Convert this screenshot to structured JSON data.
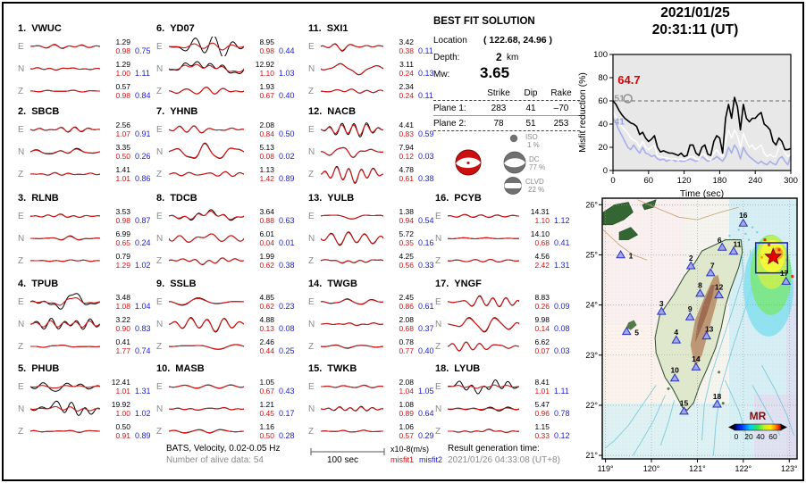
{
  "datetime": {
    "date": "2021/01/25",
    "time": "20:31:11  (UT)"
  },
  "solution": {
    "title": "BEST FIT SOLUTION",
    "location_label": "Location",
    "location_value": "( 122.68,  24.96 )",
    "depth_label": "Depth:",
    "depth_value": "2",
    "depth_unit": "km",
    "mw_label": "Mw:",
    "mw_value": "3.65",
    "col_strike": "Strike",
    "col_dip": "Dip",
    "col_rake": "Rake",
    "p1_label": "Plane 1:",
    "p1_strike": "283",
    "p1_dip": "41",
    "p1_rake": "–70",
    "p2_label": "Plane 2:",
    "p2_strike": "78",
    "p2_dip": "51",
    "p2_rake": "253",
    "decomposition": [
      {
        "label": "ISO",
        "pct": "1  %"
      },
      {
        "label": "DC",
        "pct": "77 %"
      },
      {
        "label": "CLVD",
        "pct": "22 %"
      }
    ]
  },
  "stations": [
    {
      "num": "1.",
      "name": "VWUC",
      "comps": [
        {
          "label": "E",
          "obs": "1.29",
          "syn": "0.98",
          "m2": "0.75",
          "a1": 0.16,
          "a2": 0.13
        },
        {
          "label": "N",
          "obs": "1.29",
          "syn": "1.00",
          "m2": "1.11",
          "a1": 0.13,
          "a2": 0.11
        },
        {
          "label": "Z",
          "obs": "0.57",
          "syn": "0.98",
          "m2": "0.84",
          "a1": 0.09,
          "a2": 0.08
        }
      ]
    },
    {
      "num": "2.",
      "name": "SBCB",
      "comps": [
        {
          "label": "E",
          "obs": "2.56",
          "syn": "1.07",
          "m2": "0.91",
          "a1": 0.22,
          "a2": 0.18
        },
        {
          "label": "N",
          "obs": "3.35",
          "syn": "0.50",
          "m2": "0.26",
          "a1": 0.28,
          "a2": 0.22
        },
        {
          "label": "Z",
          "obs": "1.41",
          "syn": "1.01",
          "m2": "0.86",
          "a1": 0.14,
          "a2": 0.12
        }
      ]
    },
    {
      "num": "3.",
      "name": "RLNB",
      "comps": [
        {
          "label": "E",
          "obs": "3.53",
          "syn": "0.98",
          "m2": "0.87",
          "a1": 0.13,
          "a2": 0.11
        },
        {
          "label": "N",
          "obs": "6.99",
          "syn": "0.65",
          "m2": "0.24",
          "a1": 0.16,
          "a2": 0.13
        },
        {
          "label": "Z",
          "obs": "0.79",
          "syn": "1.29",
          "m2": "1.02",
          "a1": 0.07,
          "a2": 0.07
        }
      ]
    },
    {
      "num": "4.",
      "name": "TPUB",
      "comps": [
        {
          "label": "E",
          "obs": "3.48",
          "syn": "1.08",
          "m2": "1.04",
          "a1": 0.6,
          "a2": 0.28
        },
        {
          "label": "N",
          "obs": "3.22",
          "syn": "0.90",
          "m2": "0.83",
          "a1": 0.5,
          "a2": 0.3
        },
        {
          "label": "Z",
          "obs": "0.41",
          "syn": "1.77",
          "m2": "0.74",
          "a1": 0.1,
          "a2": 0.09
        }
      ]
    },
    {
      "num": "5.",
      "name": "PHUB",
      "comps": [
        {
          "label": "E",
          "obs": "12.41",
          "syn": "1.01",
          "m2": "1.31",
          "a1": 0.5,
          "a2": 0.16
        },
        {
          "label": "N",
          "obs": "19.92",
          "syn": "1.00",
          "m2": "1.02",
          "a1": 0.65,
          "a2": 0.2
        },
        {
          "label": "Z",
          "obs": "0.50",
          "syn": "0.91",
          "m2": "0.89",
          "a1": 0.12,
          "a2": 0.1
        }
      ]
    },
    {
      "num": "6.",
      "name": "YD07",
      "comps": [
        {
          "label": "E",
          "obs": "8.95",
          "syn": "0.98",
          "m2": "0.44",
          "a1": 0.95,
          "a2": 0.3
        },
        {
          "label": "N",
          "obs": "12.92",
          "syn": "1.10",
          "m2": "1.03",
          "a1": 0.9,
          "a2": 0.55
        },
        {
          "label": "Z",
          "obs": "1.93",
          "syn": "0.67",
          "m2": "0.40",
          "a1": 0.32,
          "a2": 0.3
        }
      ]
    },
    {
      "num": "7.",
      "name": "YHNB",
      "comps": [
        {
          "label": "E",
          "obs": "2.08",
          "syn": "0.84",
          "m2": "0.50",
          "a1": 0.38,
          "a2": 0.35
        },
        {
          "label": "N",
          "obs": "5.13",
          "syn": "0.08",
          "m2": "0.02",
          "a1": 0.7,
          "a2": 0.65
        },
        {
          "label": "Z",
          "obs": "1.13",
          "syn": "1.42",
          "m2": "0.89",
          "a1": 0.26,
          "a2": 0.24
        }
      ]
    },
    {
      "num": "8.",
      "name": "TDCB",
      "comps": [
        {
          "label": "E",
          "obs": "3.64",
          "syn": "0.88",
          "m2": "0.63",
          "a1": 0.45,
          "a2": 0.35
        },
        {
          "label": "N",
          "obs": "6.01",
          "syn": "0.04",
          "m2": "0.01",
          "a1": 0.8,
          "a2": 0.78
        },
        {
          "label": "Z",
          "obs": "1.99",
          "syn": "0.62",
          "m2": "0.38",
          "a1": 0.32,
          "a2": 0.3
        }
      ]
    },
    {
      "num": "9.",
      "name": "SSLB",
      "comps": [
        {
          "label": "E",
          "obs": "4.85",
          "syn": "0.62",
          "m2": "0.23",
          "a1": 0.38,
          "a2": 0.32
        },
        {
          "label": "N",
          "obs": "4.88",
          "syn": "0.13",
          "m2": "0.08",
          "a1": 0.55,
          "a2": 0.5
        },
        {
          "label": "Z",
          "obs": "2.46",
          "syn": "0.44",
          "m2": "0.25",
          "a1": 0.28,
          "a2": 0.25
        }
      ]
    },
    {
      "num": "10.",
      "name": "MASB",
      "comps": [
        {
          "label": "E",
          "obs": "1.05",
          "syn": "0.67",
          "m2": "0.43",
          "a1": 0.2,
          "a2": 0.17
        },
        {
          "label": "N",
          "obs": "1.21",
          "syn": "0.45",
          "m2": "0.17",
          "a1": 0.2,
          "a2": 0.17
        },
        {
          "label": "Z",
          "obs": "1.16",
          "syn": "0.50",
          "m2": "0.28",
          "a1": 0.16,
          "a2": 0.13
        }
      ]
    },
    {
      "num": "11.",
      "name": "SXI1",
      "comps": [
        {
          "label": "E",
          "obs": "3.42",
          "syn": "0.38",
          "m2": "0.11",
          "a1": 0.38,
          "a2": 0.33
        },
        {
          "label": "N",
          "obs": "3.11",
          "syn": "0.24",
          "m2": "0.13",
          "a1": 0.42,
          "a2": 0.4
        },
        {
          "label": "Z",
          "obs": "2.34",
          "syn": "0.24",
          "m2": "0.11",
          "a1": 0.32,
          "a2": 0.3
        }
      ]
    },
    {
      "num": "12.",
      "name": "NACB",
      "comps": [
        {
          "label": "E",
          "obs": "4.41",
          "syn": "0.83",
          "m2": "0.59",
          "a1": 0.5,
          "a2": 0.38
        },
        {
          "label": "N",
          "obs": "7.94",
          "syn": "0.12",
          "m2": "0.03",
          "a1": 0.85,
          "a2": 0.8
        },
        {
          "label": "Z",
          "obs": "4.78",
          "syn": "0.61",
          "m2": "0.38",
          "a1": 0.6,
          "a2": 0.55
        }
      ]
    },
    {
      "num": "13.",
      "name": "YULB",
      "comps": [
        {
          "label": "E",
          "obs": "1.38",
          "syn": "0.94",
          "m2": "0.54",
          "a1": 0.32,
          "a2": 0.3
        },
        {
          "label": "N",
          "obs": "5.72",
          "syn": "0.35",
          "m2": "0.16",
          "a1": 0.55,
          "a2": 0.5
        },
        {
          "label": "Z",
          "obs": "4.25",
          "syn": "0.56",
          "m2": "0.33",
          "a1": 0.38,
          "a2": 0.33
        }
      ]
    },
    {
      "num": "14.",
      "name": "TWGB",
      "comps": [
        {
          "label": "E",
          "obs": "2.45",
          "syn": "0.86",
          "m2": "0.61",
          "a1": 0.26,
          "a2": 0.22
        },
        {
          "label": "N",
          "obs": "2.08",
          "syn": "0.68",
          "m2": "0.37",
          "a1": 0.26,
          "a2": 0.22
        },
        {
          "label": "Z",
          "obs": "0.78",
          "syn": "0.77",
          "m2": "0.40",
          "a1": 0.16,
          "a2": 0.13
        }
      ]
    },
    {
      "num": "15.",
      "name": "TWKB",
      "comps": [
        {
          "label": "E",
          "obs": "2.08",
          "syn": "1.04",
          "m2": "1.05",
          "a1": 0.16,
          "a2": 0.13
        },
        {
          "label": "N",
          "obs": "1.08",
          "syn": "0.89",
          "m2": "0.64",
          "a1": 0.16,
          "a2": 0.13
        },
        {
          "label": "Z",
          "obs": "1.06",
          "syn": "0.57",
          "m2": "0.29",
          "a1": 0.13,
          "a2": 0.11
        }
      ]
    },
    {
      "num": "16.",
      "name": "PCYB",
      "comps": [
        {
          "label": "E",
          "obs": "14.31",
          "syn": "1.10",
          "m2": "1.12",
          "a1": 0.16,
          "a2": 0.13
        },
        {
          "label": "N",
          "obs": "14.10",
          "syn": "0.68",
          "m2": "0.41",
          "a1": 0.16,
          "a2": 0.13
        },
        {
          "label": "Z",
          "obs": "4.56",
          "syn": "2.42",
          "m2": "1.31",
          "a1": 0.11,
          "a2": 0.1
        }
      ]
    },
    {
      "num": "17.",
      "name": "YNGF",
      "comps": [
        {
          "label": "E",
          "obs": "8.83",
          "syn": "0.26",
          "m2": "0.09",
          "a1": 0.6,
          "a2": 0.55
        },
        {
          "label": "N",
          "obs": "9.98",
          "syn": "0.14",
          "m2": "0.08",
          "a1": 0.6,
          "a2": 0.55
        },
        {
          "label": "Z",
          "obs": "6.62",
          "syn": "0.07",
          "m2": "0.03",
          "a1": 0.55,
          "a2": 0.52
        }
      ]
    },
    {
      "num": "18.",
      "name": "LYUB",
      "comps": [
        {
          "label": "E",
          "obs": "8.41",
          "syn": "1.01",
          "m2": "1.11",
          "a1": 0.55,
          "a2": 0.13
        },
        {
          "label": "N",
          "obs": "5.47",
          "syn": "0.96",
          "m2": "0.78",
          "a1": 0.33,
          "a2": 0.16
        },
        {
          "label": "Z",
          "obs": "1.15",
          "syn": "0.33",
          "m2": "0.12",
          "a1": 0.13,
          "a2": 0.11
        }
      ]
    }
  ],
  "chart_data": {
    "type": "line",
    "title": "",
    "xlabel": "Time (sec)",
    "ylabel": "Misfit reduction (%)",
    "xlim": [
      0,
      300
    ],
    "ylim": [
      0,
      100
    ],
    "xticks": [
      0,
      60,
      120,
      180,
      240,
      300
    ],
    "yticks": [
      0,
      20,
      40,
      60,
      80,
      100
    ],
    "dashed_line_y": 60,
    "x_start": 0,
    "x_step": 5,
    "legend_position": "none",
    "grid": false,
    "series": [
      {
        "name": "misfit-reduction-black",
        "color": "#000000",
        "values": [
          60,
          57,
          52,
          48,
          45,
          43,
          41,
          40,
          38,
          31,
          33,
          28,
          25,
          27,
          30,
          20,
          16,
          17,
          16,
          15,
          15,
          14,
          13,
          15,
          12,
          13,
          22,
          22,
          15,
          13,
          20,
          22,
          14,
          13,
          25,
          30,
          28,
          15,
          45,
          57,
          45,
          63,
          55,
          35,
          57,
          45,
          42,
          45,
          45,
          48,
          50,
          40,
          38,
          35,
          25,
          22,
          28,
          25,
          18,
          18,
          19
        ]
      },
      {
        "name": "misfit-reduction-white",
        "color": "#ffffff",
        "values": [
          51,
          46,
          42,
          38,
          35,
          32,
          28,
          26,
          25,
          20,
          25,
          20,
          18,
          20,
          22,
          12,
          12,
          11,
          11,
          10,
          10,
          10,
          9,
          10,
          9,
          10,
          12,
          12,
          10,
          9,
          14,
          14,
          10,
          9,
          15,
          18,
          14,
          12,
          25,
          35,
          28,
          35,
          30,
          20,
          32,
          25,
          20,
          22,
          18,
          20,
          22,
          15,
          12,
          14,
          12,
          12,
          20,
          22,
          15,
          12,
          14
        ]
      },
      {
        "name": "misfit-reduction-blue",
        "color": "#a8aee8",
        "values": [
          45,
          41,
          35,
          30,
          25,
          20,
          18,
          22,
          18,
          15,
          20,
          15,
          14,
          12,
          13,
          10,
          9,
          10,
          8,
          9,
          10,
          8,
          9,
          8,
          8,
          9,
          10,
          9,
          8,
          9,
          12,
          10,
          8,
          9,
          10,
          12,
          10,
          8,
          12,
          20,
          15,
          22,
          18,
          10,
          20,
          15,
          12,
          10,
          8,
          6,
          8,
          6,
          5,
          8,
          6,
          5,
          10,
          12,
          8,
          5,
          13
        ]
      }
    ],
    "annotations": [
      {
        "text": "64.7",
        "color": "#e00000",
        "x": 8,
        "y": 77
      },
      {
        "text": "51",
        "color": "#999999",
        "x": 2,
        "y": 62
      },
      {
        "text": "41",
        "color": "#9aa2e8",
        "x": 2,
        "y": 42
      }
    ],
    "marker": {
      "x": 25,
      "y": 62
    }
  },
  "map": {
    "lat_values": [
      26,
      25,
      24,
      23,
      22,
      21
    ],
    "lat_labels": [
      "26°",
      "25°",
      "24°",
      "23°",
      "22°",
      "21°"
    ],
    "lon_values": [
      119,
      120,
      121,
      122,
      123
    ],
    "lon_labels": [
      "119°",
      "120°",
      "121°",
      "122°",
      "123°"
    ],
    "legend_title": "MR",
    "colorbar_labels": [
      "0",
      "20",
      "40",
      "60"
    ],
    "epicenter": {
      "lon": 122.65,
      "lat": 24.96
    },
    "grid_rect": {
      "lon_min": 122.27,
      "lon_max": 122.96,
      "lat_min": 24.64,
      "lat_max": 25.24
    },
    "stations": [
      {
        "num": "1",
        "lon": 119.33,
        "lat": 25.0
      },
      {
        "num": "2",
        "lon": 120.86,
        "lat": 24.78
      },
      {
        "num": "3",
        "lon": 120.22,
        "lat": 23.87
      },
      {
        "num": "4",
        "lon": 120.54,
        "lat": 23.3
      },
      {
        "num": "5",
        "lon": 119.46,
        "lat": 23.47
      },
      {
        "num": "6",
        "lon": 121.54,
        "lat": 25.15
      },
      {
        "num": "7",
        "lon": 121.29,
        "lat": 24.64
      },
      {
        "num": "8",
        "lon": 121.06,
        "lat": 24.23
      },
      {
        "num": "9",
        "lon": 120.84,
        "lat": 23.76
      },
      {
        "num": "10",
        "lon": 120.51,
        "lat": 22.54
      },
      {
        "num": "11",
        "lon": 121.79,
        "lat": 25.07
      },
      {
        "num": "12",
        "lon": 121.47,
        "lat": 24.2
      },
      {
        "num": "13",
        "lon": 121.2,
        "lat": 23.38
      },
      {
        "num": "14",
        "lon": 120.97,
        "lat": 22.76
      },
      {
        "num": "15",
        "lon": 120.71,
        "lat": 21.88
      },
      {
        "num": "16",
        "lon": 122.0,
        "lat": 25.63
      },
      {
        "num": "17",
        "lon": 122.93,
        "lat": 24.47
      },
      {
        "num": "18",
        "lon": 121.43,
        "lat": 22.02
      }
    ]
  },
  "footer": {
    "line1": "BATS, Velocity, 0.02-0.05 Hz",
    "line2": "Number of alive data: 54",
    "scale_label": "100 sec",
    "units": "x10-8(m/s)",
    "legend1": "misfit1",
    "legend2": "misfit2",
    "result_label": "Result generation time:",
    "result_value": "2021/01/26 04:33:08 (UT+8)"
  }
}
